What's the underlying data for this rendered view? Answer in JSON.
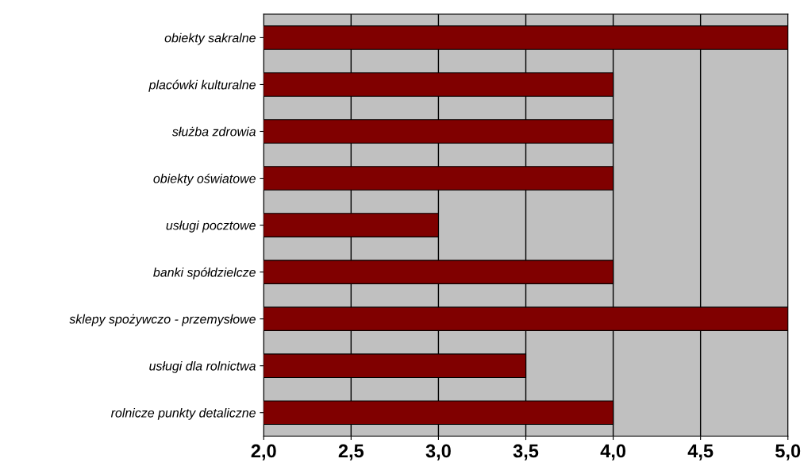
{
  "chart_data": {
    "type": "bar",
    "orientation": "horizontal",
    "categories": [
      "obiekty sakralne",
      "placówki kulturalne",
      "służba zdrowia",
      "obiekty oświatowe",
      "usługi pocztowe",
      "banki spółdzielcze",
      "sklepy spożywczo - przemysłowe",
      "usługi dla rolnictwa",
      "rolnicze punkty detaliczne"
    ],
    "values": [
      5,
      4,
      4,
      4,
      3,
      4,
      5,
      3.5,
      4
    ],
    "color": "#800000",
    "xlim": [
      2,
      5
    ],
    "xticks": [
      {
        "value": 2,
        "label": "2,0"
      },
      {
        "value": 2.5,
        "label": "2,5"
      },
      {
        "value": 3,
        "label": "3,0"
      },
      {
        "value": 3.5,
        "label": "3,5"
      },
      {
        "value": 4,
        "label": "4,0"
      },
      {
        "value": 4.5,
        "label": "4,5"
      },
      {
        "value": 5,
        "label": "5,0"
      }
    ],
    "grid": "x"
  }
}
